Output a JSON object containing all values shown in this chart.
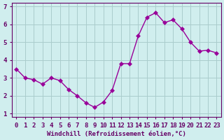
{
  "x": [
    0,
    1,
    2,
    3,
    4,
    5,
    6,
    7,
    8,
    9,
    10,
    11,
    12,
    13,
    14,
    15,
    16,
    17,
    18,
    19,
    20,
    21,
    22,
    23
  ],
  "y": [
    3.5,
    3.0,
    2.9,
    2.65,
    3.0,
    2.85,
    2.35,
    2.0,
    1.6,
    1.35,
    1.65,
    2.3,
    3.8,
    3.8,
    5.35,
    6.4,
    6.65,
    6.1,
    6.25,
    5.75,
    5.0,
    4.5,
    4.55,
    4.4
  ],
  "line_color": "#990099",
  "marker": "D",
  "marker_size": 3,
  "bg_color": "#d0eeee",
  "grid_color": "#aacccc",
  "xlabel": "Windchill (Refroidissement éolien,°C)",
  "xlim": [
    -0.5,
    23.5
  ],
  "ylim": [
    0.8,
    7.2
  ],
  "yticks": [
    1,
    2,
    3,
    4,
    5,
    6,
    7
  ],
  "ytick_labels": [
    "1",
    "2",
    "3",
    "4",
    "5",
    "6",
    "7"
  ],
  "xticks": [
    0,
    1,
    2,
    3,
    4,
    5,
    6,
    7,
    8,
    9,
    10,
    11,
    12,
    13,
    14,
    15,
    16,
    17,
    18,
    19,
    20,
    21,
    22,
    23
  ],
  "xlabel_fontsize": 6.5,
  "tick_fontsize": 6.5,
  "axis_color": "#660066"
}
